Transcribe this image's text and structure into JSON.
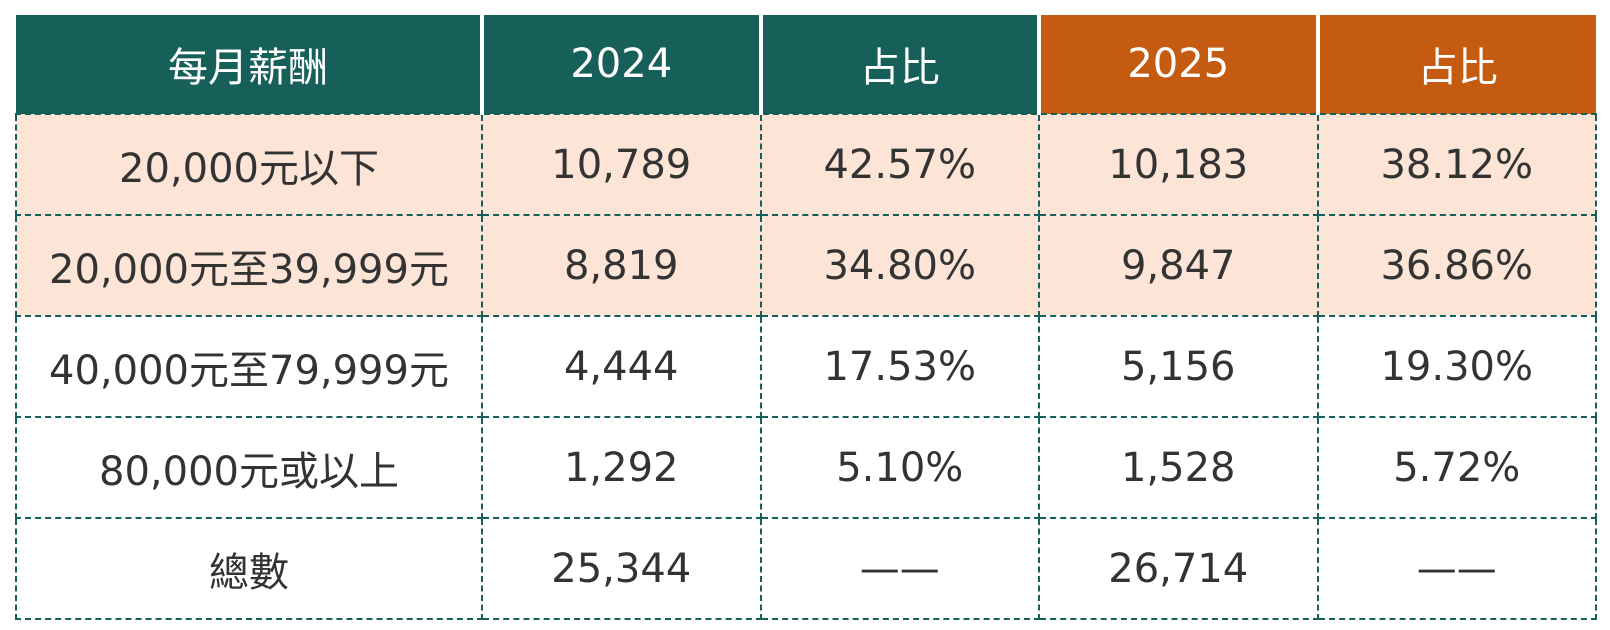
{
  "table": {
    "header": [
      "每月薪酬",
      "2024",
      "占比",
      "2025",
      "占比"
    ],
    "rows": [
      [
        "20,000元以下",
        "10,789",
        "42.57%",
        "10,183",
        "38.12%"
      ],
      [
        "20,000元至39,999元",
        "8,819",
        "34.80%",
        "9,847",
        "36.86%"
      ],
      [
        "40,000元至79,999元",
        "4,444",
        "17.53%",
        "5,156",
        "19.30%"
      ],
      [
        "80,000元或以上",
        "1,292",
        "5.10%",
        "1,528",
        "5.72%"
      ],
      [
        "總數",
        "25,344",
        "——",
        "26,714",
        "——"
      ]
    ]
  }
}
